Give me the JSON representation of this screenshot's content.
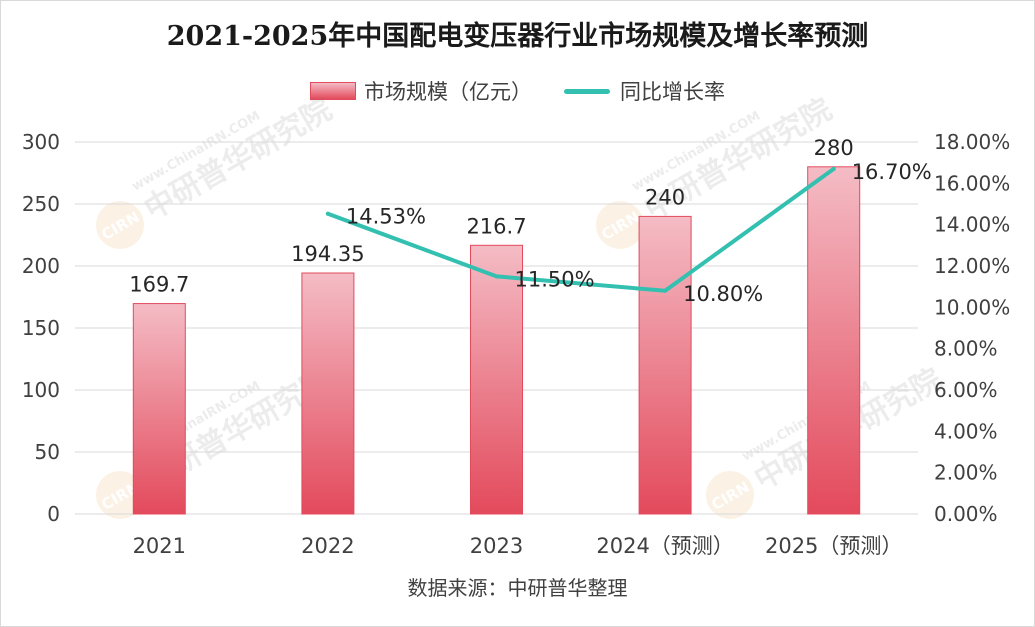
{
  "title": "2021-2025年中国配电变压器行业市场规模及增长率预测",
  "source": "数据来源：中研普华整理",
  "watermark": {
    "logo_text": "CIRN",
    "text": "中研普华研究院",
    "url": "www.ChinaIRN.COM"
  },
  "colors": {
    "bar_top": "#f4bcc5",
    "bar_bottom": "#e34a5c",
    "bar_edge": "#e34a5c",
    "line": "#33c0b0",
    "grid": "#d9d9d9"
  },
  "chart_data": {
    "type": "bar",
    "title": "2021-2025年中国配电变压器行业市场规模及增长率预测",
    "categories": [
      "2021",
      "2022",
      "2023",
      "2024（预测）",
      "2025（预测）"
    ],
    "series": [
      {
        "name": "市场规模（亿元）",
        "type": "bar",
        "axis": "left",
        "values": [
          169.7,
          194.35,
          216.7,
          240,
          280
        ],
        "labels": [
          "169.7",
          "194.35",
          "216.7",
          "240",
          "280"
        ]
      },
      {
        "name": "同比增长率",
        "type": "line",
        "axis": "right",
        "values": [
          null,
          14.53,
          11.5,
          10.8,
          16.7
        ],
        "labels": [
          "",
          "14.53%",
          "11.50%",
          "10.80%",
          "16.70%"
        ]
      }
    ],
    "y_left": {
      "range": [
        0,
        300
      ],
      "ticks": [
        "0",
        "50",
        "100",
        "150",
        "200",
        "250",
        "300"
      ]
    },
    "y_right": {
      "range": [
        0,
        18
      ],
      "ticks": [
        "0.00%",
        "2.00%",
        "4.00%",
        "6.00%",
        "8.00%",
        "10.00%",
        "12.00%",
        "14.00%",
        "16.00%",
        "18.00%"
      ]
    },
    "grid": true,
    "legend": "top-center"
  }
}
